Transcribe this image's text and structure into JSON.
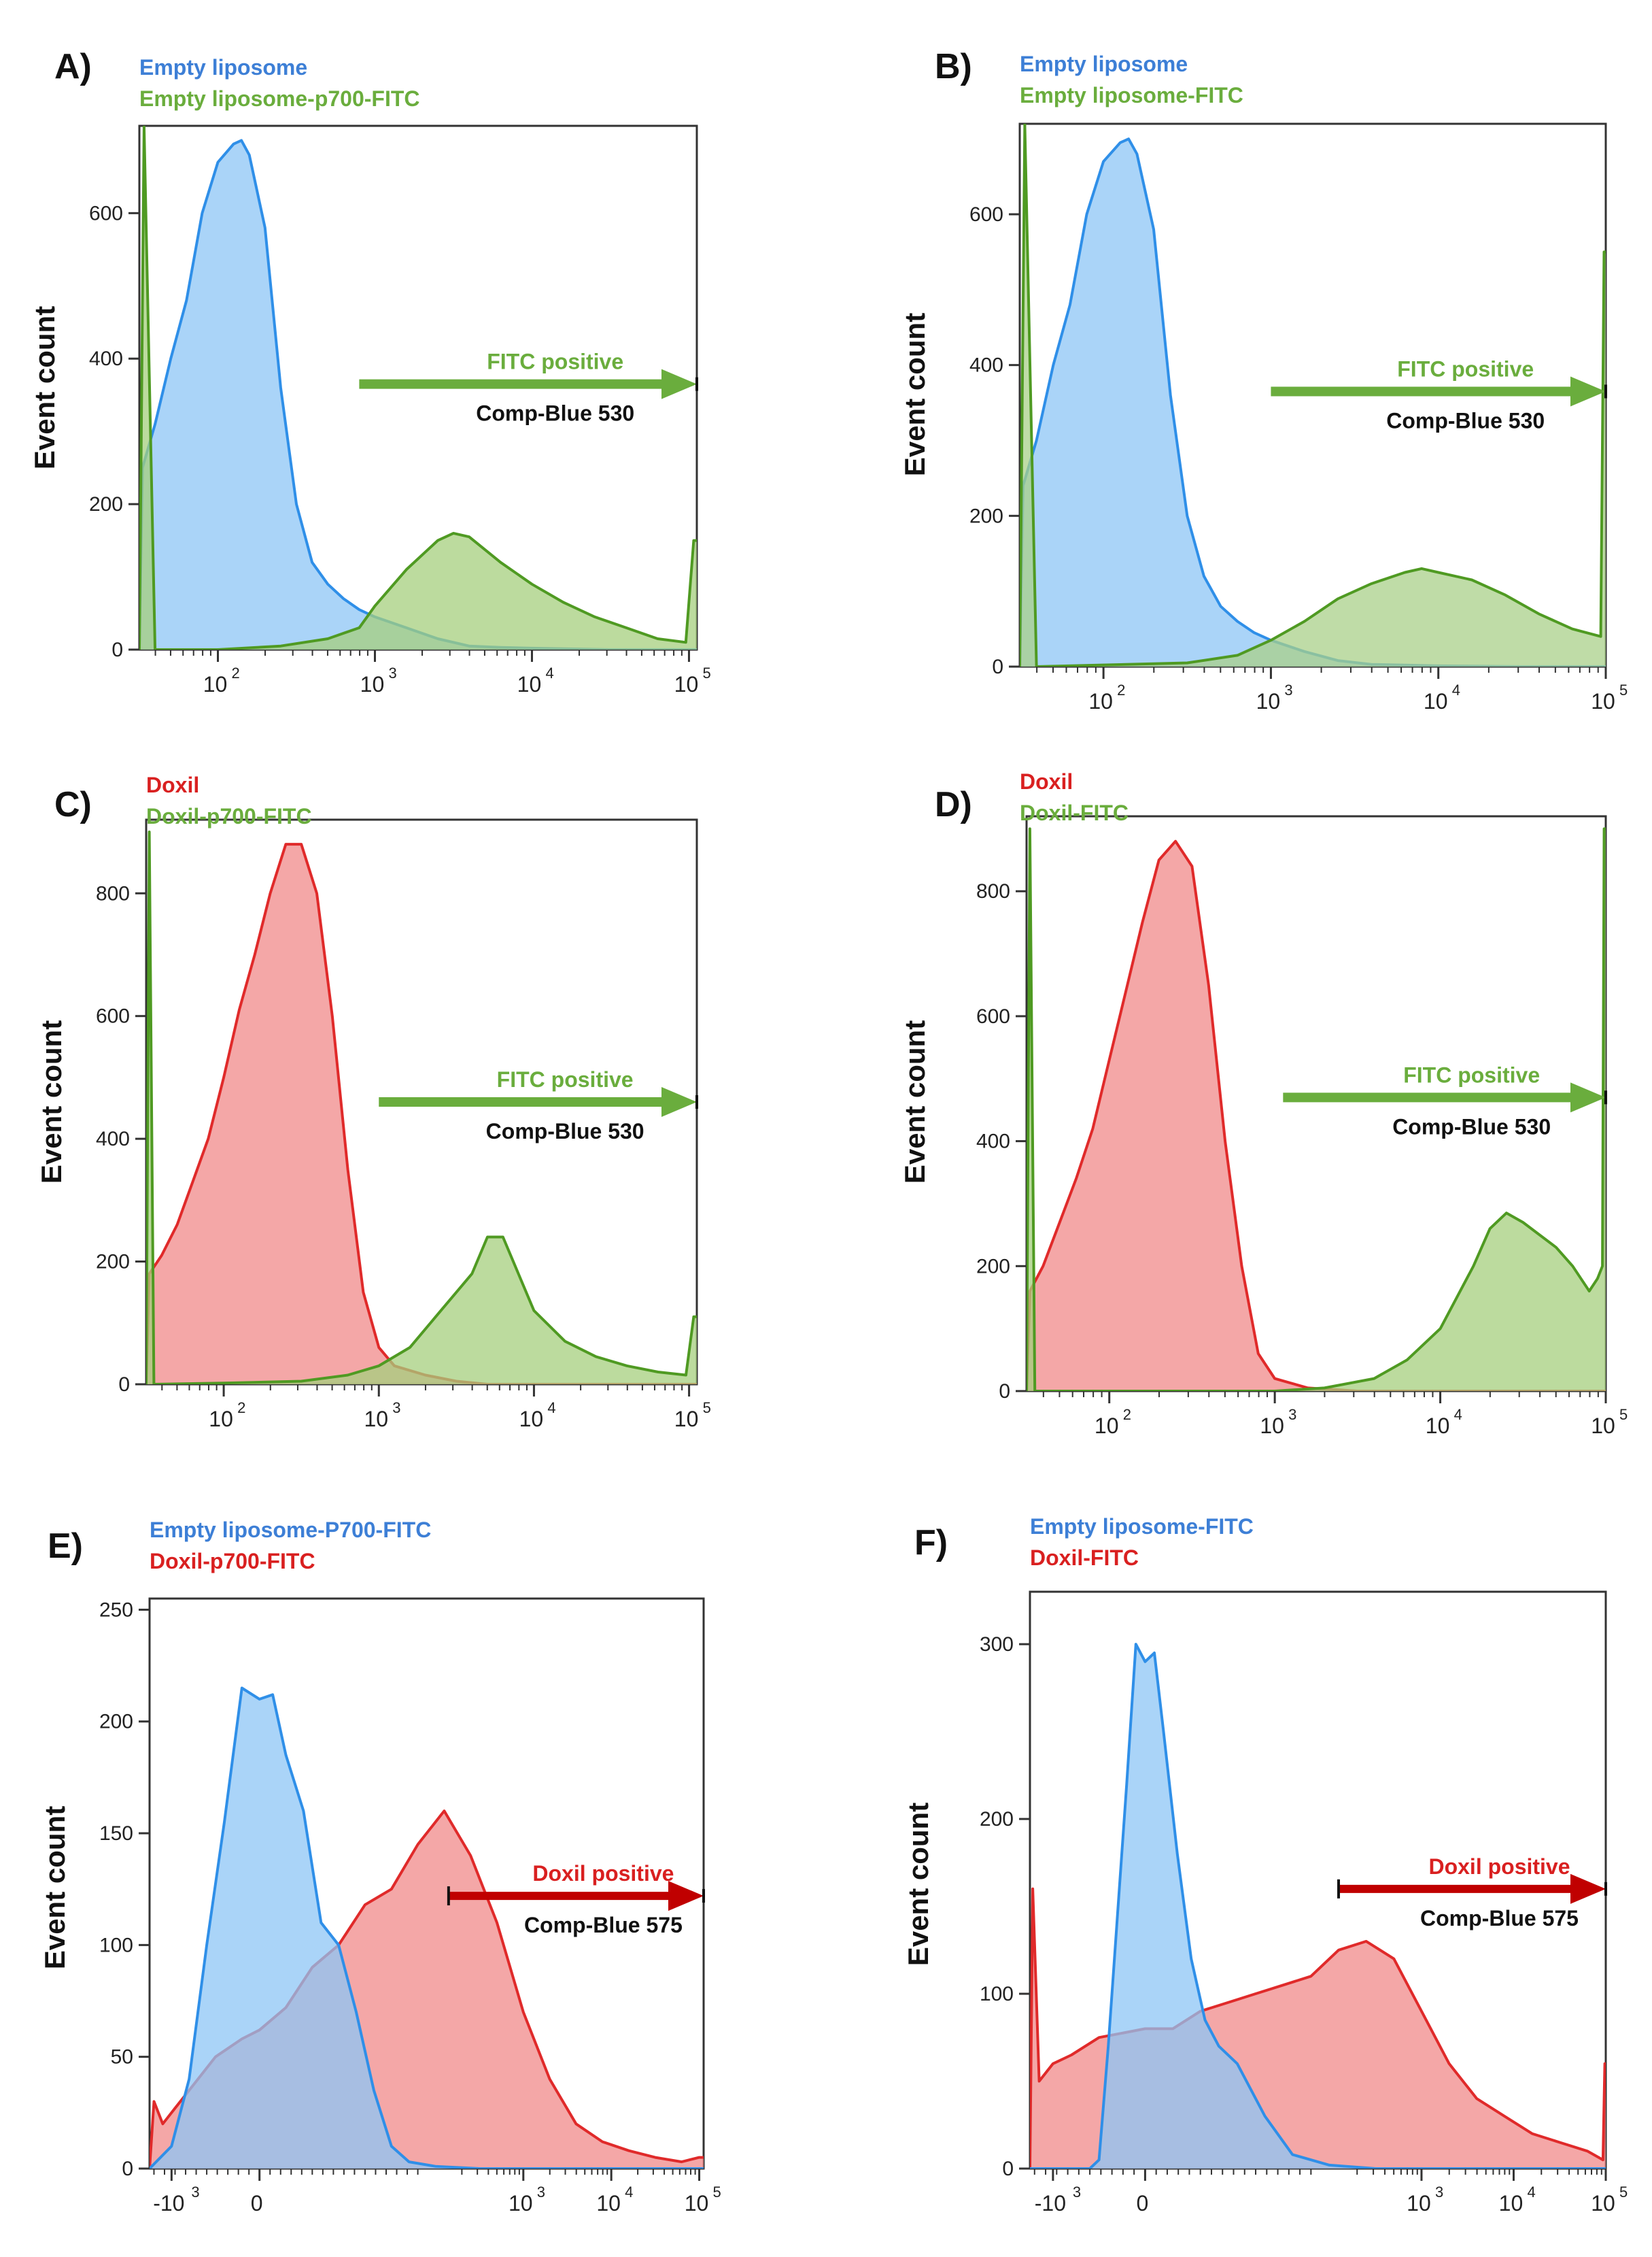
{
  "colors": {
    "blue_line": "#2f8fe8",
    "blue_fill": "#8ec5f5",
    "green_line": "#4f9a22",
    "green_fill": "#a6cf7e",
    "green_fill_b": "#a9d08a",
    "red_line": "#e02a2a",
    "red_fill": "#f08a8a",
    "overlap_fill": "#8a6aa6",
    "fitc_arrow": "#6aad3d",
    "doxil_arrow": "#c00000",
    "blue_text": "#3d7fd6",
    "green_text": "#6aad3d",
    "red_text": "#d92020"
  },
  "chart_data": [
    {
      "type": "area",
      "id": "A",
      "panel_label": "A)",
      "ylabel": "Event count",
      "xscale": "log",
      "xlim_log10": [
        1.5,
        5.05
      ],
      "ylim": [
        0,
        720
      ],
      "ytick_values": [
        0,
        200,
        400,
        600
      ],
      "ytick_labels": [
        "0",
        "200",
        "400",
        "600"
      ],
      "xtick_values": [
        2,
        3,
        4,
        5
      ],
      "xtick_labels": [
        "10",
        "10",
        "10",
        "10"
      ],
      "xtick_exps": [
        "2",
        "3",
        "4",
        "5"
      ],
      "legend": [
        {
          "text": "Empty liposome",
          "color": "blue_text"
        },
        {
          "text": "Empty liposome-p700-FITC",
          "color": "green_text"
        }
      ],
      "gate": {
        "text": "FITC positive",
        "sublabel": "Comp-Blue 530",
        "from_log": 2.9,
        "to_log": 5.05,
        "y": 365,
        "color": "fitc_arrow",
        "text_color": "green_text"
      },
      "series": [
        {
          "name": "Empty liposome",
          "line": "blue_line",
          "fill": "blue_fill",
          "x": [
            1.5,
            1.52,
            1.6,
            1.7,
            1.8,
            1.9,
            2.0,
            2.1,
            2.15,
            2.2,
            2.3,
            2.4,
            2.5,
            2.6,
            2.7,
            2.8,
            2.9,
            3.0,
            3.2,
            3.4,
            3.6,
            3.8,
            4.0,
            4.5,
            5.05
          ],
          "y": [
            0,
            250,
            310,
            400,
            480,
            600,
            670,
            695,
            700,
            680,
            580,
            360,
            200,
            120,
            90,
            70,
            55,
            45,
            30,
            15,
            5,
            3,
            2,
            0,
            0
          ]
        },
        {
          "name": "Empty liposome-p700-FITC",
          "line": "green_line",
          "fill": "green_fill",
          "x": [
            1.5,
            1.53,
            1.6,
            2.0,
            2.4,
            2.7,
            2.9,
            3.0,
            3.2,
            3.4,
            3.5,
            3.6,
            3.8,
            4.0,
            4.2,
            4.4,
            4.6,
            4.8,
            4.98,
            5.03,
            5.05
          ],
          "y": [
            0,
            720,
            0,
            0,
            5,
            15,
            30,
            60,
            110,
            150,
            160,
            155,
            120,
            90,
            65,
            45,
            30,
            15,
            10,
            150,
            150
          ]
        }
      ]
    },
    {
      "type": "area",
      "id": "B",
      "panel_label": "B)",
      "ylabel": "Event count",
      "xscale": "log",
      "xlim_log10": [
        1.5,
        5.0
      ],
      "ylim": [
        0,
        720
      ],
      "ytick_values": [
        0,
        200,
        400,
        600
      ],
      "ytick_labels": [
        "0",
        "200",
        "400",
        "600"
      ],
      "xtick_values": [
        2,
        3,
        4,
        5
      ],
      "xtick_labels": [
        "10",
        "10",
        "10",
        "10"
      ],
      "xtick_exps": [
        "2",
        "3",
        "4",
        "5"
      ],
      "legend": [
        {
          "text": "Empty liposome",
          "color": "blue_text"
        },
        {
          "text": "Empty liposome-FITC",
          "color": "green_text"
        }
      ],
      "gate": {
        "text": "FITC positive",
        "sublabel": "Comp-Blue 530",
        "from_log": 3.0,
        "to_log": 5.0,
        "y": 365,
        "color": "fitc_arrow",
        "text_color": "green_text"
      },
      "series": [
        {
          "name": "Empty liposome",
          "line": "blue_line",
          "fill": "blue_fill",
          "x": [
            1.5,
            1.52,
            1.6,
            1.7,
            1.8,
            1.9,
            2.0,
            2.1,
            2.15,
            2.2,
            2.3,
            2.4,
            2.5,
            2.6,
            2.7,
            2.8,
            2.9,
            3.0,
            3.2,
            3.4,
            3.6,
            3.8,
            4.0,
            4.5,
            5.0
          ],
          "y": [
            0,
            240,
            300,
            400,
            480,
            600,
            670,
            695,
            700,
            680,
            580,
            360,
            200,
            120,
            80,
            60,
            45,
            35,
            20,
            8,
            3,
            2,
            1,
            0,
            0
          ]
        },
        {
          "name": "Empty liposome-FITC",
          "line": "green_line",
          "fill": "green_fill_b",
          "x": [
            1.5,
            1.53,
            1.6,
            2.5,
            2.8,
            3.0,
            3.2,
            3.4,
            3.6,
            3.8,
            3.9,
            4.0,
            4.2,
            4.4,
            4.6,
            4.8,
            4.97,
            4.99,
            5.0
          ],
          "y": [
            0,
            720,
            0,
            5,
            15,
            35,
            60,
            90,
            110,
            125,
            130,
            125,
            115,
            95,
            70,
            50,
            40,
            550,
            550
          ]
        }
      ]
    },
    {
      "type": "area",
      "id": "C",
      "panel_label": "C)",
      "ylabel": "Event count",
      "xscale": "log",
      "xlim_log10": [
        1.5,
        5.05
      ],
      "ylim": [
        0,
        920
      ],
      "ytick_values": [
        0,
        200,
        400,
        600,
        800
      ],
      "ytick_labels": [
        "0",
        "200",
        "400",
        "600",
        "800"
      ],
      "xtick_values": [
        2,
        3,
        4,
        5
      ],
      "xtick_labels": [
        "10",
        "10",
        "10",
        "10"
      ],
      "xtick_exps": [
        "2",
        "3",
        "4",
        "5"
      ],
      "legend": [
        {
          "text": "Doxil",
          "color": "red_text"
        },
        {
          "text": "Doxil-p700-FITC",
          "color": "green_text"
        }
      ],
      "gate": {
        "text": "FITC positive",
        "sublabel": "Comp-Blue 530",
        "from_log": 3.0,
        "to_log": 5.05,
        "y": 460,
        "color": "fitc_arrow",
        "text_color": "green_text"
      },
      "series": [
        {
          "name": "Doxil",
          "line": "red_line",
          "fill": "red_fill",
          "x": [
            1.5,
            1.52,
            1.6,
            1.7,
            1.8,
            1.9,
            2.0,
            2.1,
            2.2,
            2.3,
            2.4,
            2.5,
            2.6,
            2.7,
            2.8,
            2.9,
            3.0,
            3.1,
            3.3,
            3.5,
            3.7,
            5.05
          ],
          "y": [
            0,
            180,
            210,
            260,
            330,
            400,
            500,
            610,
            700,
            800,
            880,
            880,
            800,
            600,
            350,
            150,
            60,
            30,
            15,
            5,
            0,
            0
          ]
        },
        {
          "name": "Doxil-p700-FITC",
          "line": "green_line",
          "fill": "green_fill",
          "x": [
            1.5,
            1.52,
            1.55,
            2.0,
            2.5,
            2.8,
            3.0,
            3.2,
            3.4,
            3.6,
            3.7,
            3.8,
            3.9,
            4.0,
            4.2,
            4.4,
            4.6,
            4.8,
            4.98,
            5.03,
            5.05
          ],
          "y": [
            0,
            900,
            0,
            2,
            5,
            15,
            30,
            60,
            120,
            180,
            240,
            240,
            180,
            120,
            70,
            45,
            30,
            20,
            15,
            110,
            110
          ]
        }
      ]
    },
    {
      "type": "area",
      "id": "D",
      "panel_label": "D)",
      "ylabel": "Event count",
      "xscale": "log",
      "xlim_log10": [
        1.5,
        5.0
      ],
      "ylim": [
        0,
        920
      ],
      "ytick_values": [
        0,
        200,
        400,
        600,
        800
      ],
      "ytick_labels": [
        "0",
        "200",
        "400",
        "600",
        "800"
      ],
      "xtick_values": [
        2,
        3,
        4,
        5
      ],
      "xtick_labels": [
        "10",
        "10",
        "10",
        "10"
      ],
      "xtick_exps": [
        "2",
        "3",
        "4",
        "5"
      ],
      "legend": [
        {
          "text": "Doxil",
          "color": "red_text"
        },
        {
          "text": "Doxil-FITC",
          "color": "green_text"
        }
      ],
      "gate": {
        "text": "FITC positive",
        "sublabel": "Comp-Blue 530",
        "from_log": 3.05,
        "to_log": 5.0,
        "y": 470,
        "color": "fitc_arrow",
        "text_color": "green_text"
      },
      "series": [
        {
          "name": "Doxil",
          "line": "red_line",
          "fill": "red_fill",
          "x": [
            1.5,
            1.52,
            1.6,
            1.7,
            1.8,
            1.9,
            2.0,
            2.1,
            2.2,
            2.3,
            2.4,
            2.5,
            2.6,
            2.7,
            2.8,
            2.9,
            3.0,
            3.2,
            3.5,
            5.0
          ],
          "y": [
            0,
            160,
            200,
            270,
            340,
            420,
            530,
            640,
            750,
            850,
            880,
            840,
            650,
            400,
            200,
            60,
            20,
            5,
            0,
            0
          ]
        },
        {
          "name": "Doxil-FITC",
          "line": "green_line",
          "fill": "green_fill",
          "x": [
            1.5,
            1.52,
            1.55,
            3.0,
            3.3,
            3.6,
            3.8,
            4.0,
            4.2,
            4.3,
            4.4,
            4.5,
            4.6,
            4.7,
            4.8,
            4.85,
            4.9,
            4.95,
            4.98,
            4.99,
            5.0
          ],
          "y": [
            0,
            900,
            0,
            0,
            5,
            20,
            50,
            100,
            200,
            260,
            285,
            270,
            250,
            230,
            200,
            180,
            160,
            180,
            200,
            900,
            900
          ]
        }
      ]
    },
    {
      "type": "area",
      "id": "E",
      "panel_label": "E)",
      "ylabel": "Event count",
      "xscale": "biexponential",
      "xlim": [
        -1.25,
        5.05
      ],
      "ylim": [
        0,
        255
      ],
      "ytick_values": [
        0,
        50,
        100,
        150,
        200,
        250
      ],
      "ytick_labels": [
        "0",
        "50",
        "100",
        "150",
        "200",
        "250"
      ],
      "xtick_values": [
        -1.0,
        0,
        3,
        4,
        5
      ],
      "xtick_labels": [
        "-10",
        "0",
        "10",
        "10",
        "10"
      ],
      "xtick_exps": [
        "3",
        "",
        "3",
        "4",
        "5"
      ],
      "legend": [
        {
          "text": "Empty liposome-P700-FITC",
          "color": "blue_text"
        },
        {
          "text": "Doxil-p700-FITC",
          "color": "red_text"
        }
      ],
      "gate": {
        "text": "Doxil positive",
        "sublabel": "Comp-Blue 575",
        "from_log": 2.15,
        "to_log": 5.05,
        "y": 122,
        "color": "doxil_arrow",
        "text_color": "red_text"
      },
      "series": [
        {
          "name": "Doxil-p700-FITC",
          "line": "red_line",
          "fill": "red_fill",
          "x": [
            -1.25,
            -1.2,
            -1.1,
            -1.0,
            -0.8,
            -0.5,
            -0.2,
            0.0,
            0.3,
            0.6,
            0.9,
            1.2,
            1.5,
            1.8,
            2.1,
            2.4,
            2.7,
            3.0,
            3.3,
            3.6,
            3.9,
            4.2,
            4.5,
            4.8,
            5.0,
            5.05
          ],
          "y": [
            0,
            30,
            20,
            25,
            35,
            50,
            58,
            62,
            72,
            90,
            100,
            118,
            125,
            145,
            160,
            140,
            110,
            70,
            40,
            20,
            12,
            8,
            5,
            3,
            5,
            5
          ]
        },
        {
          "name": "Empty liposome-P700-FITC",
          "line": "blue_line",
          "fill": "blue_fill",
          "x": [
            -1.25,
            -1.2,
            -1.0,
            -0.8,
            -0.6,
            -0.4,
            -0.2,
            0.0,
            0.15,
            0.3,
            0.5,
            0.7,
            0.9,
            1.1,
            1.3,
            1.5,
            1.7,
            2.0,
            2.5,
            3.0,
            5.05
          ],
          "y": [
            0,
            2,
            10,
            40,
            100,
            155,
            215,
            210,
            212,
            185,
            160,
            110,
            100,
            70,
            35,
            10,
            3,
            1,
            0,
            0,
            0
          ]
        }
      ]
    },
    {
      "type": "area",
      "id": "F",
      "panel_label": "F)",
      "ylabel": "Event count",
      "xscale": "biexponential",
      "xlim": [
        -1.25,
        5.0
      ],
      "ylim": [
        0,
        330
      ],
      "ytick_values": [
        0,
        100,
        200,
        300
      ],
      "ytick_labels": [
        "0",
        "100",
        "200",
        "300"
      ],
      "xtick_values": [
        -1.0,
        0,
        3,
        4,
        5
      ],
      "xtick_labels": [
        "-10",
        "0",
        "10",
        "10",
        "10"
      ],
      "xtick_exps": [
        "3",
        "",
        "3",
        "4",
        "5"
      ],
      "legend": [
        {
          "text": "Empty liposome-FITC",
          "color": "blue_text"
        },
        {
          "text": "Doxil-FITC",
          "color": "red_text"
        }
      ],
      "gate": {
        "text": "Doxil positive",
        "sublabel": "Comp-Blue 575",
        "from_log": 2.1,
        "to_log": 5.0,
        "y": 160,
        "color": "doxil_arrow",
        "text_color": "red_text"
      },
      "series": [
        {
          "name": "Doxil-FITC",
          "line": "red_line",
          "fill": "red_fill",
          "x": [
            -1.25,
            -1.22,
            -1.15,
            -1.0,
            -0.8,
            -0.5,
            -0.2,
            0.0,
            0.3,
            0.6,
            0.9,
            1.2,
            1.5,
            1.8,
            2.1,
            2.4,
            2.7,
            3.0,
            3.3,
            3.6,
            3.9,
            4.2,
            4.5,
            4.8,
            4.97,
            4.99,
            5.0
          ],
          "y": [
            0,
            160,
            50,
            60,
            65,
            75,
            78,
            80,
            80,
            90,
            95,
            100,
            105,
            110,
            125,
            130,
            120,
            90,
            60,
            40,
            30,
            20,
            15,
            10,
            5,
            60,
            60
          ]
        },
        {
          "name": "Empty liposome-FITC",
          "line": "blue_line",
          "fill": "blue_fill",
          "x": [
            -1.25,
            -0.6,
            -0.5,
            -0.4,
            -0.2,
            -0.1,
            0.0,
            0.1,
            0.2,
            0.35,
            0.5,
            0.65,
            0.8,
            1.0,
            1.3,
            1.6,
            2.0,
            2.5,
            3.0,
            5.0
          ],
          "y": [
            0,
            0,
            5,
            70,
            220,
            300,
            290,
            295,
            250,
            180,
            120,
            85,
            70,
            60,
            30,
            8,
            2,
            0,
            0,
            0
          ]
        }
      ]
    }
  ]
}
